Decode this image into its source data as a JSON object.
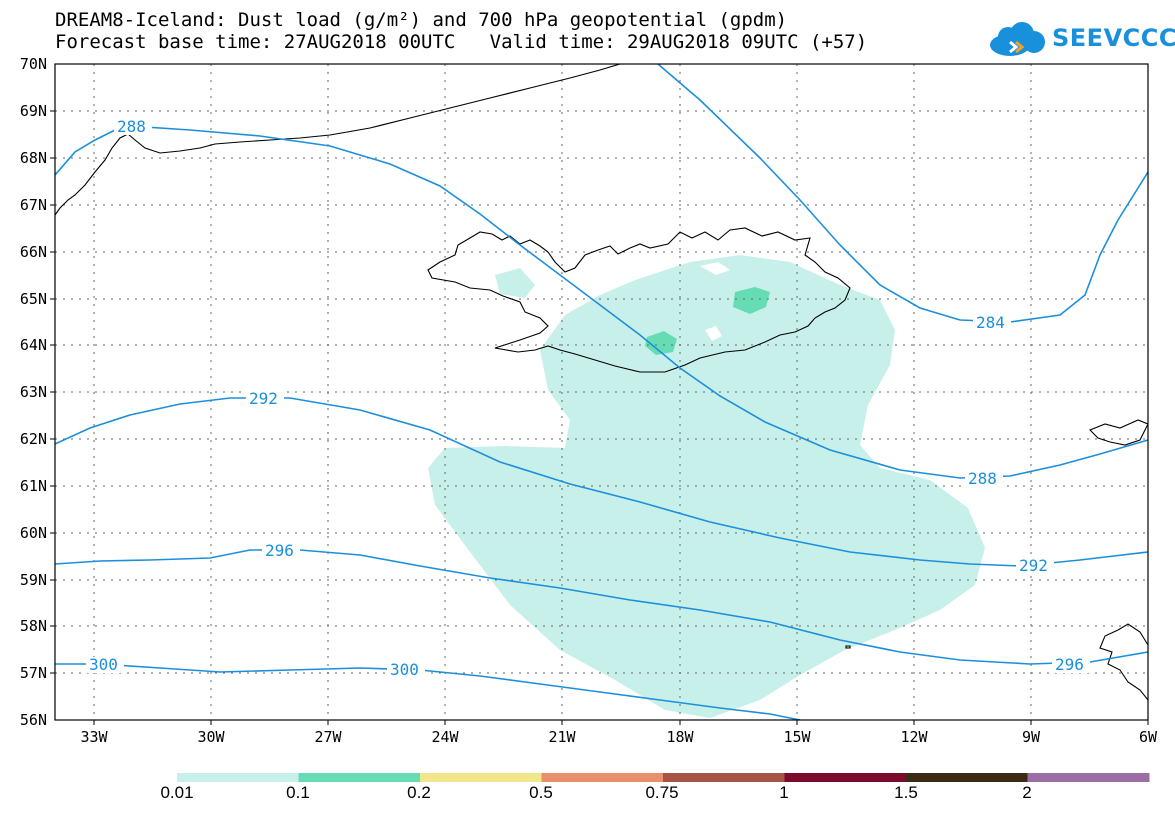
{
  "title_line1": "DREAM8-Iceland: Dust load (g/m²) and 700 hPa geopotential (gpdm)",
  "title_line2": "Forecast base time: 27AUG2018 00UTC   Valid time: 29AUG2018 09UTC (+57)",
  "logo_text": "SEEVCCC",
  "lat_labels": [
    "70N",
    "69N",
    "68N",
    "67N",
    "66N",
    "65N",
    "64N",
    "63N",
    "62N",
    "61N",
    "60N",
    "59N",
    "58N",
    "57N",
    "56N"
  ],
  "lon_labels": [
    "33W",
    "30W",
    "27W",
    "24W",
    "21W",
    "18W",
    "15W",
    "12W",
    "9W",
    "6W"
  ],
  "contour_labels": {
    "c288_a": "288",
    "c284": "284",
    "c288_b": "288",
    "c292_a": "292",
    "c292_b": "292",
    "c296_a": "296",
    "c296_b": "296",
    "c300_a": "300",
    "c300_b": "300"
  },
  "colorbar": {
    "labels": [
      "0.01",
      "0.1",
      "0.2",
      "0.5",
      "0.75",
      "1",
      "1.5",
      "2"
    ],
    "colors": [
      "#c8f0ea",
      "#66dcb4",
      "#f2e68a",
      "#e8906c",
      "#a85444",
      "#7c0a2a",
      "#3c2a14",
      "#9c6ca4"
    ]
  },
  "colors": {
    "contour": "#1c8fdc",
    "dust_light": "#c8f0ea",
    "dust_mid": "#66dcb4"
  }
}
